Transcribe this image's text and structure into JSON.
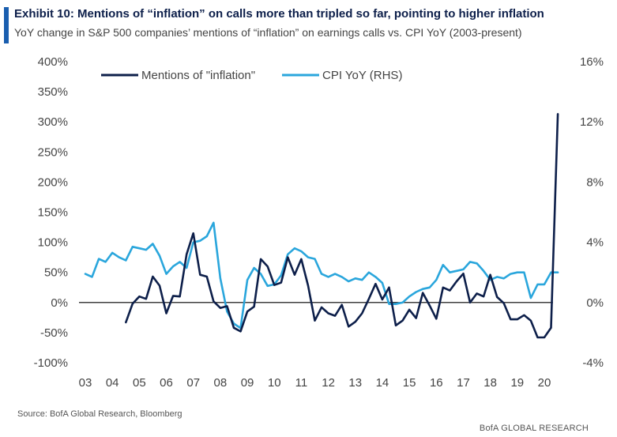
{
  "header": {
    "title": "Exhibit 10: Mentions of “inflation” on calls more than tripled so far, pointing to higher inflation",
    "subtitle": "YoY change in S&P 500 companies’ mentions of “inflation” on earnings calls vs. CPI YoY (2003-present)"
  },
  "footer": {
    "source": "Source: BofA Global Research, Bloomberg",
    "brand": "BofA GLOBAL RESEARCH"
  },
  "colors": {
    "mentions": "#0d1f4a",
    "cpi": "#2aa6dc",
    "accent": "#1a5eaf"
  },
  "chart_data": {
    "type": "line",
    "title": "",
    "xlabel": "",
    "ylabel": "",
    "x_ticks": [
      "03",
      "04",
      "05",
      "06",
      "07",
      "08",
      "09",
      "10",
      "11",
      "12",
      "13",
      "14",
      "15",
      "16",
      "17",
      "18",
      "19",
      "20"
    ],
    "y_left": {
      "lim": [
        -100,
        400
      ],
      "ticks": [
        "400%",
        "350%",
        "300%",
        "250%",
        "200%",
        "150%",
        "100%",
        "50%",
        "0%",
        "-50%",
        "-100%"
      ]
    },
    "y_right": {
      "lim": [
        -4,
        16
      ],
      "ticks": [
        "16%",
        "12%",
        "8%",
        "4%",
        "0%",
        "-4%"
      ]
    },
    "legend": {
      "placement": "top-left",
      "entries": [
        "Mentions of \"inflation\"",
        "CPI YoY (RHS)"
      ]
    },
    "series": [
      {
        "name": "Mentions of \"inflation\"",
        "axis": "left",
        "x": [
          2004.5,
          2004.75,
          2005.0,
          2005.25,
          2005.5,
          2005.75,
          2006.0,
          2006.25,
          2006.5,
          2006.75,
          2007.0,
          2007.25,
          2007.5,
          2007.75,
          2008.0,
          2008.25,
          2008.5,
          2008.75,
          2009.0,
          2009.25,
          2009.5,
          2009.75,
          2010.0,
          2010.25,
          2010.5,
          2010.75,
          2011.0,
          2011.25,
          2011.5,
          2011.75,
          2012.0,
          2012.25,
          2012.5,
          2012.75,
          2013.0,
          2013.25,
          2013.5,
          2013.75,
          2014.0,
          2014.25,
          2014.5,
          2014.75,
          2015.0,
          2015.25,
          2015.5,
          2015.75,
          2016.0,
          2016.25,
          2016.5,
          2016.75,
          2017.0,
          2017.25,
          2017.5,
          2017.75,
          2018.0,
          2018.25,
          2018.5,
          2018.75,
          2019.0,
          2019.25,
          2019.5,
          2019.75,
          2020.0,
          2020.25,
          2020.5
        ],
        "values": [
          -33,
          -2,
          10,
          6,
          43,
          28,
          -18,
          11,
          10,
          80,
          115,
          46,
          43,
          2,
          -9,
          -6,
          -42,
          -48,
          -15,
          -7,
          72,
          60,
          29,
          33,
          75,
          46,
          72,
          28,
          -30,
          -8,
          -18,
          -22,
          -4,
          -40,
          -32,
          -18,
          6,
          31,
          5,
          25,
          -38,
          -30,
          -12,
          -26,
          16,
          -5,
          -27,
          25,
          20,
          35,
          48,
          0,
          15,
          10,
          46,
          9,
          -1,
          -28,
          -28,
          -21,
          -30,
          -58,
          -58,
          -42,
          313
        ]
      },
      {
        "name": "CPI YoY (RHS)",
        "axis": "right",
        "x": [
          2003.0,
          2003.25,
          2003.5,
          2003.75,
          2004.0,
          2004.25,
          2004.5,
          2004.75,
          2005.0,
          2005.25,
          2005.5,
          2005.75,
          2006.0,
          2006.25,
          2006.5,
          2006.75,
          2007.0,
          2007.25,
          2007.5,
          2007.75,
          2008.0,
          2008.25,
          2008.5,
          2008.75,
          2009.0,
          2009.25,
          2009.5,
          2009.75,
          2010.0,
          2010.25,
          2010.5,
          2010.75,
          2011.0,
          2011.25,
          2011.5,
          2011.75,
          2012.0,
          2012.25,
          2012.5,
          2012.75,
          2013.0,
          2013.25,
          2013.5,
          2013.75,
          2014.0,
          2014.25,
          2014.5,
          2014.75,
          2015.0,
          2015.25,
          2015.5,
          2015.75,
          2016.0,
          2016.25,
          2016.5,
          2016.75,
          2017.0,
          2017.25,
          2017.5,
          2017.75,
          2018.0,
          2018.25,
          2018.5,
          2018.75,
          2019.0,
          2019.25,
          2019.5,
          2019.75,
          2020.0,
          2020.25,
          2020.5
        ],
        "values": [
          1.9,
          1.7,
          2.9,
          2.7,
          3.3,
          3.0,
          2.8,
          3.7,
          3.6,
          3.5,
          3.9,
          3.1,
          1.9,
          2.4,
          2.7,
          2.3,
          4.0,
          4.1,
          4.4,
          5.3,
          1.6,
          -0.6,
          -1.4,
          -1.7,
          1.5,
          2.3,
          1.9,
          1.1,
          1.2,
          1.8,
          3.2,
          3.6,
          3.4,
          3.0,
          2.9,
          1.9,
          1.7,
          1.9,
          1.7,
          1.4,
          1.6,
          1.5,
          2.0,
          1.7,
          1.3,
          -0.1,
          -0.1,
          0.0,
          0.4,
          0.7,
          0.9,
          1.0,
          1.5,
          2.5,
          2.0,
          2.1,
          2.2,
          2.7,
          2.6,
          2.1,
          1.5,
          1.7,
          1.6,
          1.9,
          2.0,
          2.0,
          0.3,
          1.2,
          1.2,
          2.0,
          2.0
        ]
      }
    ]
  }
}
